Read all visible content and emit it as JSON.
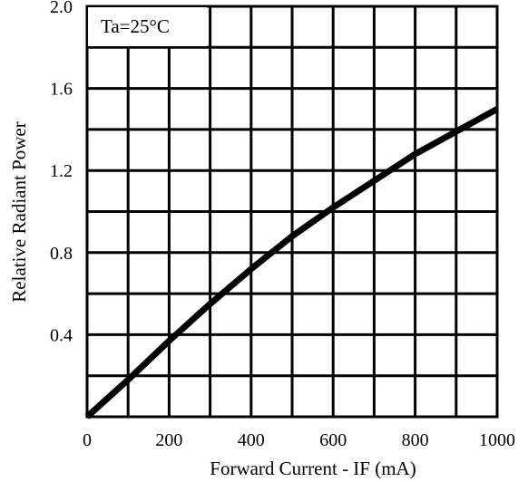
{
  "chart_data": {
    "type": "line",
    "title": "",
    "xlabel": "Forward Current - IF (mA)",
    "ylabel": "Relative Radiant Power",
    "annotation": "Ta=25°C",
    "xlim": [
      0,
      1000
    ],
    "ylim": [
      0,
      2.0
    ],
    "xticks": [
      "0",
      "200",
      "400",
      "600",
      "800",
      "1000"
    ],
    "yticks": [
      "0.4",
      "0.8",
      "1.2",
      "1.6",
      "2.0"
    ],
    "grid": true,
    "x": [
      0,
      100,
      200,
      300,
      400,
      500,
      600,
      700,
      800,
      900,
      1000
    ],
    "series": [
      {
        "values": [
          0.0,
          0.18,
          0.37,
          0.55,
          0.72,
          0.88,
          1.02,
          1.15,
          1.28,
          1.39,
          1.5
        ]
      }
    ],
    "colors": {
      "line": "#000000",
      "grid": "#000000",
      "background": "#ffffff"
    }
  }
}
